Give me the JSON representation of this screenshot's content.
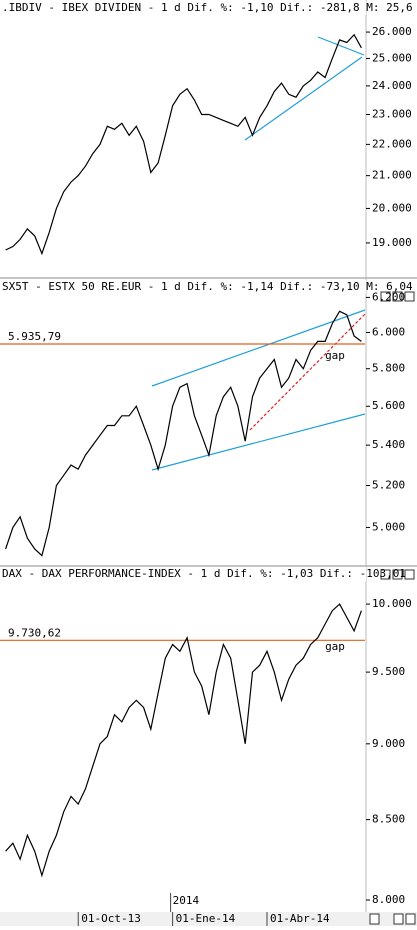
{
  "chart_data": [
    {
      "type": "line",
      "title": ".IBDIV - IBEX DIVIDEN - 1 d Dif. %: -1,10 Dif.: -281,8 M: 25,6",
      "log": true,
      "color": "#000000",
      "values": [
        18800,
        18900,
        19100,
        19400,
        19200,
        18700,
        19300,
        20000,
        20500,
        20800,
        21000,
        21300,
        21700,
        22000,
        22600,
        22500,
        22700,
        22300,
        22600,
        22100,
        21100,
        21400,
        22300,
        23300,
        23700,
        23900,
        23500,
        23000,
        23000,
        22900,
        22800,
        22700,
        22600,
        22900,
        22300,
        22900,
        23300,
        23800,
        24100,
        23700,
        23600,
        24000,
        24200,
        24500,
        24300,
        25000,
        25700,
        25600,
        25900,
        25400
      ],
      "ylim": [
        18250,
        26550
      ],
      "yticks": [
        {
          "value": 19000,
          "label": "19.000"
        },
        {
          "value": 20000,
          "label": "20.000"
        },
        {
          "value": 21000,
          "label": "21.000"
        },
        {
          "value": 22000,
          "label": "22.000"
        },
        {
          "value": 23000,
          "label": "23.000"
        },
        {
          "value": 24000,
          "label": "24.000"
        },
        {
          "value": 25000,
          "label": "25.000"
        },
        {
          "value": 26000,
          "label": "26.000"
        }
      ]
    },
    {
      "type": "line",
      "title": "SX5T - ESTX 50 RE.EUR - 1 d Dif. %: -1,14 Dif.: -73,10 M: 6,04",
      "log": true,
      "color": "#000000",
      "values": [
        4900,
        5000,
        5050,
        4950,
        4900,
        4870,
        5000,
        5200,
        5250,
        5300,
        5280,
        5350,
        5400,
        5450,
        5500,
        5500,
        5550,
        5550,
        5600,
        5500,
        5400,
        5280,
        5400,
        5600,
        5700,
        5720,
        5550,
        5450,
        5350,
        5550,
        5650,
        5700,
        5600,
        5420,
        5650,
        5750,
        5800,
        5850,
        5700,
        5750,
        5850,
        5800,
        5900,
        5950,
        5950,
        6050,
        6120,
        6100,
        5980,
        5950
      ],
      "ylim": [
        4850,
        6290
      ],
      "yticks": [
        {
          "value": 5000,
          "label": "5.000"
        },
        {
          "value": 5200,
          "label": "5.200"
        },
        {
          "value": 5400,
          "label": "5.400"
        },
        {
          "value": 5600,
          "label": "5.600"
        },
        {
          "value": 5800,
          "label": "5.800"
        },
        {
          "value": 6000,
          "label": "6.000"
        },
        {
          "value": 6200,
          "label": "6.200"
        }
      ],
      "hlines": [
        {
          "value": 5935.79,
          "label": "5.935,79",
          "color": "#e0601c"
        }
      ],
      "annotations": [
        {
          "text": "gap",
          "index": 44,
          "value": 5870
        }
      ]
    },
    {
      "type": "line",
      "title": "DAX - DAX PERFORMANCE-INDEX - 1 d Dif. %: -1,03 Dif.: -103,01",
      "log": true,
      "color": "#000000",
      "values": [
        8300,
        8350,
        8250,
        8400,
        8300,
        8150,
        8300,
        8400,
        8550,
        8650,
        8600,
        8700,
        8850,
        9000,
        9050,
        9200,
        9150,
        9250,
        9300,
        9250,
        9100,
        9350,
        9600,
        9700,
        9650,
        9750,
        9500,
        9400,
        9200,
        9500,
        9700,
        9600,
        9300,
        9000,
        9500,
        9550,
        9650,
        9500,
        9300,
        9450,
        9550,
        9600,
        9700,
        9750,
        9850,
        9950,
        10000,
        9900,
        9800,
        9950
      ],
      "categories": [
        null,
        null,
        null,
        null,
        null,
        null,
        null,
        null,
        null,
        null,
        "01-Oct-13",
        null,
        null,
        null,
        null,
        null,
        null,
        null,
        null,
        null,
        null,
        null,
        null,
        "01-Ene-14",
        null,
        null,
        null,
        null,
        null,
        null,
        null,
        null,
        null,
        null,
        null,
        null,
        "01-Abr-14",
        null,
        null,
        null,
        null,
        null,
        null,
        null,
        null,
        null,
        null,
        null,
        null,
        null
      ],
      "year_label": {
        "text": "2014",
        "index": 23
      },
      "ylim": [
        7940,
        10145
      ],
      "yticks": [
        {
          "value": 8000,
          "label": "8.000"
        },
        {
          "value": 8500,
          "label": "8.500"
        },
        {
          "value": 9000,
          "label": "9.000"
        },
        {
          "value": 9500,
          "label": "9.500"
        },
        {
          "value": 10000,
          "label": "10.000"
        }
      ],
      "hlines": [
        {
          "value": 9730.62,
          "label": "9.730,62",
          "color": "#e0601c"
        }
      ],
      "annotations": [
        {
          "text": "gap",
          "index": 44,
          "value": 9680
        }
      ]
    }
  ]
}
